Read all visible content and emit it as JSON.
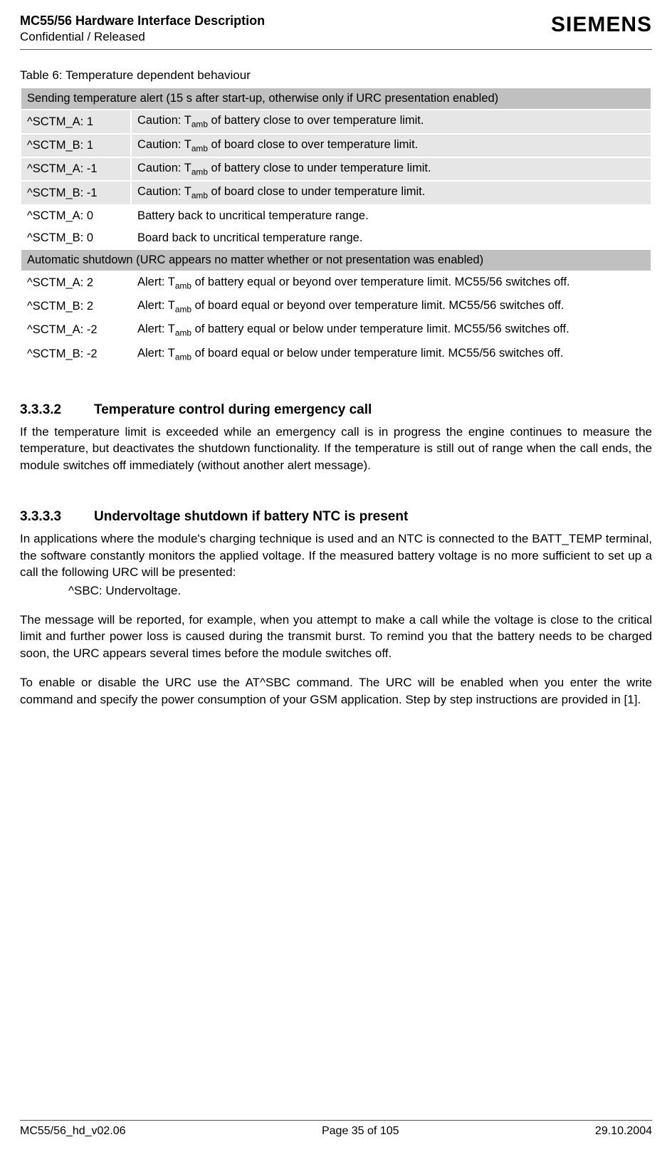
{
  "header": {
    "title": "MC55/56 Hardware Interface Description",
    "status": "Confidential / Released",
    "logo": "SIEMENS"
  },
  "table": {
    "caption": "Table 6: Temperature dependent behaviour",
    "section1_header": "Sending temperature alert (15 s after start-up, otherwise only if URC presentation enabled)",
    "rows1": [
      {
        "code": "^SCTM_A:  1",
        "pre": "Caution: T",
        "post": " of battery close to over temperature limit."
      },
      {
        "code": "^SCTM_B:  1",
        "pre": "Caution: T",
        "post": " of board close to over temperature limit."
      },
      {
        "code": "^SCTM_A:  -1",
        "pre": "Caution: T",
        "post": " of battery close to under temperature limit."
      },
      {
        "code": "^SCTM_B:  -1",
        "pre": "Caution: T",
        "post": " of board close to under temperature limit."
      }
    ],
    "rows1_plain": [
      {
        "code": "^SCTM_A: 0",
        "desc": "Battery back to uncritical temperature range."
      },
      {
        "code": "^SCTM_B: 0",
        "desc": "Board back to uncritical temperature range."
      }
    ],
    "section2_header": "Automatic shutdown (URC appears no matter whether or not presentation was enabled)",
    "rows2": [
      {
        "code": "^SCTM_A:  2",
        "pre": "Alert: T",
        "post": " of battery equal or beyond over temperature limit. MC55/56 switches off."
      },
      {
        "code": "^SCTM_B:  2",
        "pre": "Alert: T",
        "post": " of board equal or beyond over temperature limit. MC55/56 switches off."
      },
      {
        "code": "^SCTM_A:  -2",
        "pre": "Alert: T",
        "post": " of battery equal or below under temperature limit. MC55/56 switches off."
      },
      {
        "code": "^SCTM_B:  -2",
        "pre": "Alert: T",
        "post": " of board equal or below under temperature limit. MC55/56 switches off."
      }
    ],
    "sub_label": "amb"
  },
  "sections": {
    "s1_num": "3.3.3.2",
    "s1_title": "Temperature control during emergency call",
    "s1_body": "If the temperature limit is exceeded while an emergency call is in progress the engine continues to measure the temperature, but deactivates the shutdown functionality. If the temperature is still out of range when the call ends, the module switches off immediately (without another alert message).",
    "s2_num": "3.3.3.3",
    "s2_title": "Undervoltage shutdown if battery NTC is present",
    "s2_p1": "In applications where the module's charging technique is used and an NTC is connected to the BATT_TEMP terminal, the software constantly monitors the applied voltage. If the measured battery voltage is no more sufficient to set up a call the following URC will be presented:",
    "s2_indent": "^SBC:  Undervoltage.",
    "s2_p2": "The message will be reported, for example, when you attempt to make a call while the voltage is close to the critical limit and further power loss is caused during the transmit burst. To remind you that the battery needs to be charged soon, the URC appears several times before the module switches off.",
    "s2_p3": "To enable or disable the URC use the AT^SBC command. The URC will be enabled when you enter the write command and specify the power consumption of your GSM application. Step by step instructions are provided in [1]."
  },
  "footer": {
    "left": "MC55/56_hd_v02.06",
    "center": "Page 35 of 105",
    "right": "29.10.2004"
  }
}
